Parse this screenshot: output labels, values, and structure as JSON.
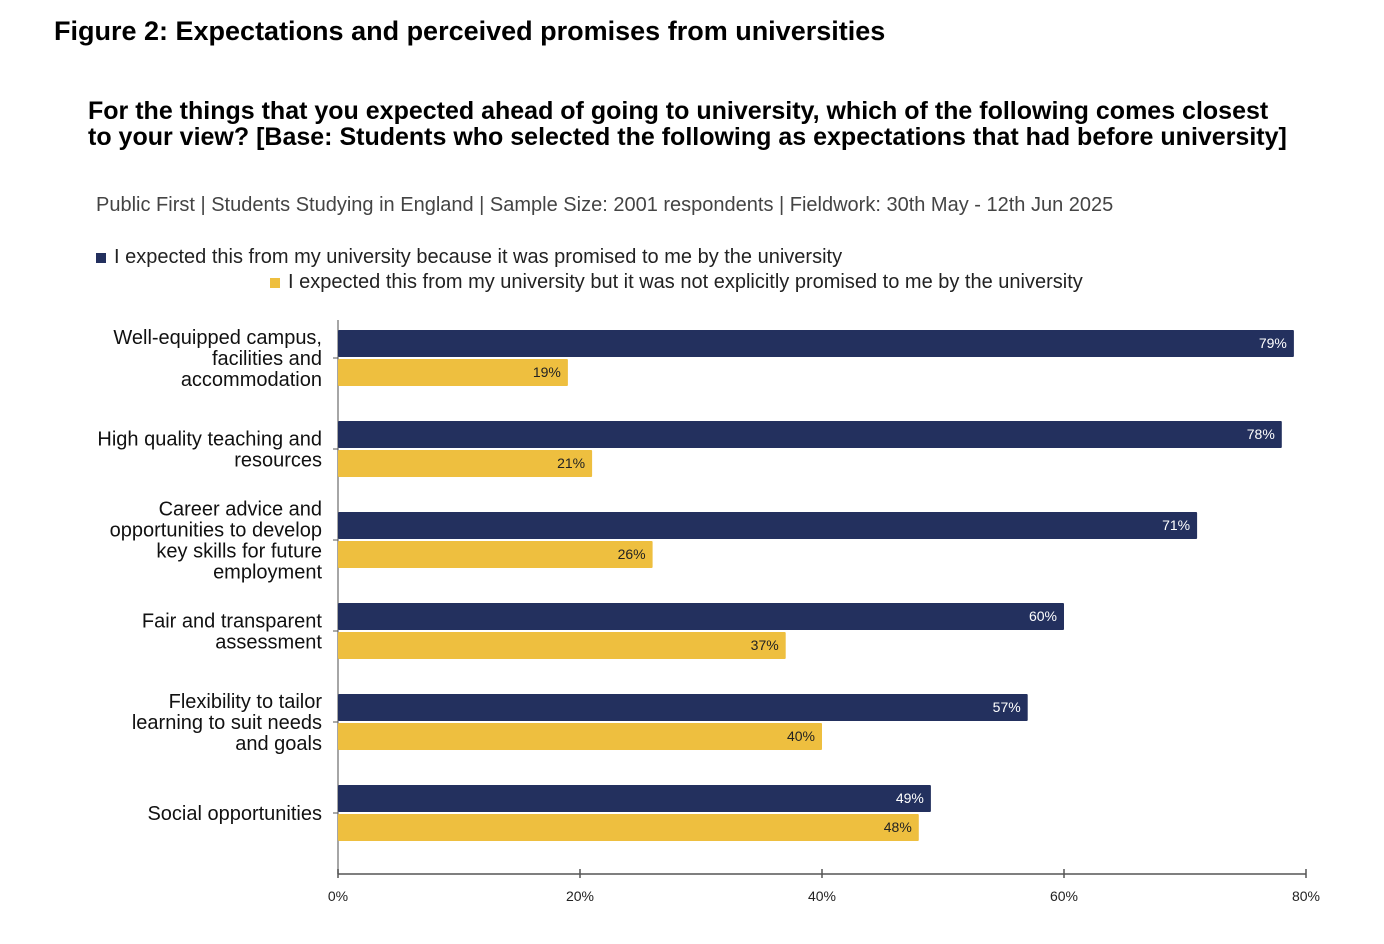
{
  "figure_title": "Figure 2: Expectations and perceived promises from universities",
  "chart_data": {
    "type": "bar",
    "orientation": "horizontal",
    "title": "For the things that you expected ahead of going to university, which of the following comes closest to your view? [Base: Students who selected the following as expectations that had before university]",
    "subtitle": "Public First | Students Studying in England | Sample Size: 2001 respondents | Fieldwork:  30th May - 12th Jun 2025",
    "categories": [
      [
        "Well-equipped campus,",
        "facilities and",
        "accommodation"
      ],
      [
        "High quality teaching and",
        "resources"
      ],
      [
        "Career advice and",
        "opportunities to develop",
        "key skills for future",
        "employment"
      ],
      [
        "Fair and transparent",
        "assessment"
      ],
      [
        "Flexibility to tailor",
        "learning to suit needs",
        "and goals"
      ],
      [
        "Social opportunities"
      ]
    ],
    "series": [
      {
        "name": "I expected this from my university because it was promised to me by the university",
        "color": "#23305e",
        "label_color": "#ffffff",
        "values": [
          79,
          78,
          71,
          60,
          57,
          49
        ]
      },
      {
        "name": "I expected this from my university but it was not explicitly promised to me by the university",
        "color": "#eebf3f",
        "label_color": "#222222",
        "values": [
          19,
          21,
          26,
          37,
          40,
          48
        ]
      }
    ],
    "xlim": [
      0,
      80
    ],
    "xticks": [
      0,
      20,
      40,
      60,
      80
    ],
    "tick_suffix": "%",
    "legend": "top"
  }
}
